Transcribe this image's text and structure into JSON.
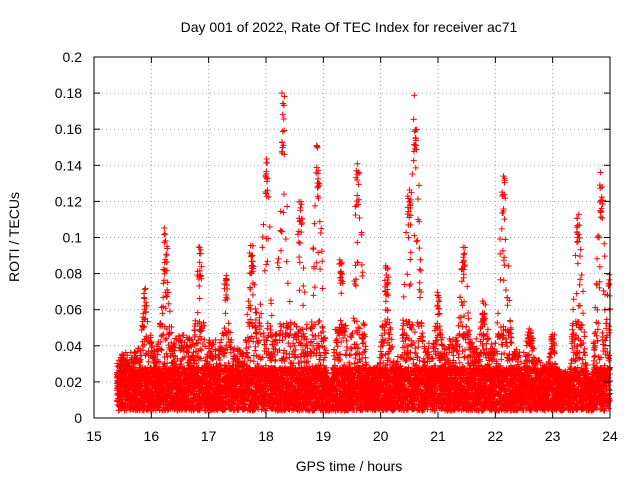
{
  "chart_data": {
    "type": "scatter",
    "title": "Day 001 of 2022, Rate Of TEC Index for receiver ac71",
    "xlabel": "GPS time / hours",
    "ylabel": "ROTI / TECUs",
    "xlim": [
      15,
      24
    ],
    "ylim": [
      0,
      0.2
    ],
    "xticks": [
      "15",
      "16",
      "17",
      "18",
      "19",
      "20",
      "21",
      "22",
      "23",
      "24"
    ],
    "yticks": [
      "0",
      "0.02",
      "0.04",
      "0.06",
      "0.08",
      "0.1",
      "0.12",
      "0.14",
      "0.16",
      "0.18",
      "0.2"
    ],
    "grid": true,
    "marker": "+",
    "color": "#ff0000",
    "x_start": 15.4,
    "x_end": 24.0,
    "peaks": [
      {
        "x": 15.5,
        "y": 0.036
      },
      {
        "x": 15.9,
        "y": 0.072
      },
      {
        "x": 16.25,
        "y": 0.107
      },
      {
        "x": 16.85,
        "y": 0.096
      },
      {
        "x": 17.3,
        "y": 0.08
      },
      {
        "x": 17.75,
        "y": 0.1
      },
      {
        "x": 18.0,
        "y": 0.149
      },
      {
        "x": 18.3,
        "y": 0.18
      },
      {
        "x": 18.6,
        "y": 0.12
      },
      {
        "x": 18.9,
        "y": 0.152
      },
      {
        "x": 19.3,
        "y": 0.09
      },
      {
        "x": 19.6,
        "y": 0.141
      },
      {
        "x": 20.1,
        "y": 0.085
      },
      {
        "x": 20.5,
        "y": 0.133
      },
      {
        "x": 20.6,
        "y": 0.182
      },
      {
        "x": 21.0,
        "y": 0.07
      },
      {
        "x": 21.45,
        "y": 0.096
      },
      {
        "x": 21.8,
        "y": 0.065
      },
      {
        "x": 22.15,
        "y": 0.137
      },
      {
        "x": 22.6,
        "y": 0.05
      },
      {
        "x": 23.0,
        "y": 0.045
      },
      {
        "x": 23.45,
        "y": 0.113
      },
      {
        "x": 23.85,
        "y": 0.137
      },
      {
        "x": 24.0,
        "y": 0.08
      }
    ]
  }
}
